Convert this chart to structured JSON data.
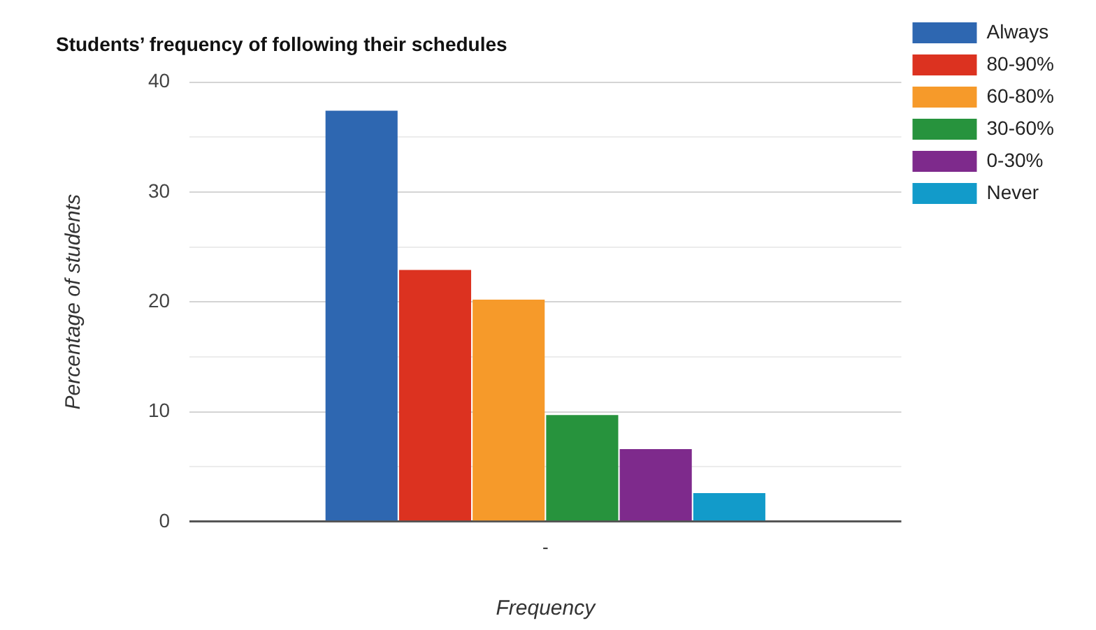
{
  "chart_data": {
    "type": "bar",
    "title": "Students’ frequency of following their schedules",
    "xlabel": "Frequency",
    "ylabel": "Percentage of students",
    "categories": [
      "-"
    ],
    "series": [
      {
        "name": "Always",
        "color": "#2e67b1",
        "values": [
          37.4
        ]
      },
      {
        "name": "80-90%",
        "color": "#dc3220",
        "values": [
          22.9
        ]
      },
      {
        "name": "60-80%",
        "color": "#f69a2a",
        "values": [
          20.2
        ]
      },
      {
        "name": "30-60%",
        "color": "#27933d",
        "values": [
          9.7
        ]
      },
      {
        "name": "0-30%",
        "color": "#7e2a8c",
        "values": [
          6.6
        ]
      },
      {
        "name": "Never",
        "color": "#129bca",
        "values": [
          2.6
        ]
      }
    ],
    "ylim": [
      0,
      40
    ],
    "yticks": [
      0,
      {
        "value": 5,
        "label": null
      },
      10,
      {
        "value": 15,
        "label": null
      },
      20,
      {
        "value": 25,
        "label": null
      },
      30,
      {
        "value": 35,
        "label": null
      },
      40
    ],
    "grid": "y",
    "legend": "right"
  }
}
